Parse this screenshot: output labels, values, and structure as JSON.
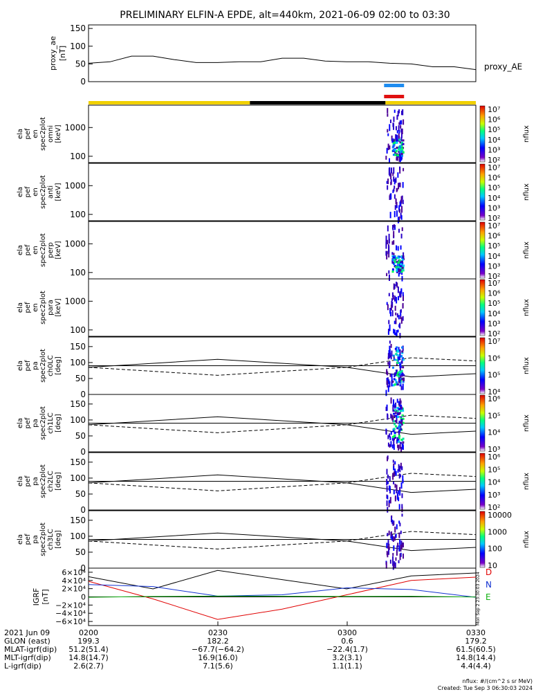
{
  "title": "PRELIMINARY ELFIN-A EPDE, alt=440km, 2021-06-09 02:00 to 03:30",
  "ae_panel": {
    "ylabel": [
      "proxy_ae",
      "[nT]"
    ],
    "yticks": [
      "150",
      "100",
      "50",
      "0"
    ],
    "series_label": "proxy_AE"
  },
  "energy_yticks": [
    "1000",
    "100"
  ],
  "angle_yticks": [
    "150",
    "100",
    "50",
    "0"
  ],
  "spec_panels": [
    {
      "labels": [
        "ela",
        "pef",
        "en",
        "spec2plot",
        "omni",
        "[keV]"
      ]
    },
    {
      "labels": [
        "ela",
        "pef",
        "en",
        "spec2plot",
        "anti",
        "[keV]"
      ]
    },
    {
      "labels": [
        "ela",
        "pef",
        "en",
        "spec2plot",
        "perp",
        "[keV]"
      ]
    },
    {
      "labels": [
        "ela",
        "pef",
        "en",
        "spec2plot",
        "para",
        "[keV]"
      ]
    },
    {
      "labels": [
        "ela",
        "pef",
        "pa",
        "spec2plot",
        "ch0LC",
        "[deg]"
      ]
    },
    {
      "labels": [
        "ela",
        "pef",
        "pa",
        "spec2plot",
        "ch1LC",
        "[deg]"
      ]
    },
    {
      "labels": [
        "ela",
        "pef",
        "pa",
        "spec2plot",
        "ch2LC",
        "[deg]"
      ]
    },
    {
      "labels": [
        "ela",
        "pef",
        "pa",
        "spec2plot",
        "ch3LC",
        "[deg]"
      ]
    }
  ],
  "colorbars": [
    {
      "ticks": [
        "10⁷",
        "10⁶",
        "10⁵",
        "10⁴",
        "10³",
        "10²"
      ],
      "label": "nflux"
    },
    {
      "ticks": [
        "10⁷",
        "10⁶",
        "10⁵",
        "10⁴",
        "10³",
        "10²"
      ],
      "label": "nflux"
    },
    {
      "ticks": [
        "10⁷",
        "10⁶",
        "10⁵",
        "10⁴",
        "10³",
        "10²"
      ],
      "label": "nflux"
    },
    {
      "ticks": [
        "10⁷",
        "10⁶",
        "10⁵",
        "10⁴",
        "10³",
        "10²"
      ],
      "label": "nflux"
    },
    {
      "ticks": [
        "10⁷",
        "10⁶",
        "10⁵",
        "10⁴"
      ],
      "label": "nflux"
    },
    {
      "ticks": [
        "10⁶",
        "10⁵",
        "10⁴",
        "10³"
      ],
      "label": "nflux"
    },
    {
      "ticks": [
        "10⁶",
        "10⁵",
        "10⁴",
        "10³",
        "10²"
      ],
      "label": "nflux"
    },
    {
      "ticks": [
        "10000",
        "1000",
        "100",
        "10"
      ],
      "label": "nflux"
    }
  ],
  "igrf_panel": {
    "ylabel": [
      "IGRF",
      "[nT]"
    ],
    "yticks": [
      "6×10⁴",
      "4×10⁴",
      "2×10⁴",
      "0",
      "−2×10⁴",
      "−4×10⁴",
      "−6×10⁴"
    ],
    "components": [
      {
        "name": "D",
        "color": "#e00000"
      },
      {
        "name": "N",
        "color": "#1030d0"
      },
      {
        "name": "E",
        "color": "#10b010"
      }
    ],
    "side_text": "Mon Sep  2 23:30:03 2024"
  },
  "orbit_table": {
    "rows": [
      {
        "label": "2021 Jun 09",
        "values": [
          "0200",
          "0230",
          "0300",
          "0330"
        ]
      },
      {
        "label": "GLON (east)",
        "values": [
          "199.3",
          "182.2",
          "0.6",
          "179.2"
        ]
      },
      {
        "label": "MLAT-igrf(dip)",
        "values": [
          "51.2(51.4)",
          "−67.7(−64.2)",
          "−22.4(1.7)",
          "61.5(60.5)"
        ]
      },
      {
        "label": "MLT-igrf(dip)",
        "values": [
          "14.8(14.7)",
          "16.9(16.0)",
          "3.2(3.1)",
          "14.8(14.4)"
        ]
      },
      {
        "label": "L-igrf(dip)",
        "values": [
          "2.6(2.7)",
          "7.1(5.6)",
          "1.1(1.1)",
          "4.4(4.4)"
        ]
      }
    ]
  },
  "footer": {
    "units": "nflux: #/(cm^2 s sr MeV)",
    "created": "Created: Tue Sep  3 06:30:03 2024"
  },
  "colors": {
    "sunlit_bar": "#f0d000",
    "shadow_bar": "#000000",
    "science_zone_top": "#1e8cf0",
    "science_zone_bottom": "#e01010"
  },
  "chart_data": {
    "type": "spectrogram",
    "time_range": [
      "2021-06-09 02:00",
      "2021-06-09 03:30"
    ],
    "x_ticks": [
      "0200",
      "0230",
      "0300",
      "0330"
    ],
    "proxy_ae": {
      "ylim": [
        0,
        160
      ],
      "times_min": [
        0,
        5,
        10,
        15,
        20,
        25,
        30,
        35,
        40,
        45,
        50,
        55,
        60,
        65,
        70,
        75,
        80,
        85,
        90
      ],
      "values_nT": [
        52,
        56,
        72,
        72,
        62,
        54,
        54,
        56,
        56,
        66,
        66,
        58,
        56,
        56,
        52,
        50,
        42,
        42,
        34
      ]
    },
    "energy_ylim_keV": [
      60,
      6000
    ],
    "pitch_angle_ylim_deg": [
      0,
      180
    ],
    "event_window_min": [
      69,
      73
    ],
    "igrf": {
      "ylim": [
        -70000,
        70000
      ],
      "times_min": [
        0,
        15,
        30,
        45,
        60,
        75,
        90
      ],
      "D": [
        38000,
        -5000,
        -55000,
        -30000,
        5000,
        40000,
        48000
      ],
      "N": [
        30000,
        25000,
        2000,
        5000,
        22000,
        18000,
        -1000
      ],
      "E": [
        -1000,
        1000,
        2000,
        1500,
        1000,
        1500,
        -500
      ]
    }
  }
}
